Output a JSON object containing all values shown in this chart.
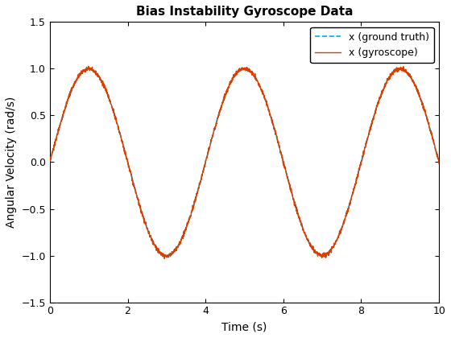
{
  "title": "Bias Instability Gyroscope Data",
  "xlabel": "Time (s)",
  "ylabel": "Angular Velocity (rad/s)",
  "xlim": [
    0,
    10
  ],
  "ylim": [
    -1.5,
    1.5
  ],
  "xticks": [
    0,
    2,
    4,
    6,
    8,
    10
  ],
  "yticks": [
    -1.5,
    -1.0,
    -0.5,
    0,
    0.5,
    1.0,
    1.5
  ],
  "ground_truth_color": "#00AAFF",
  "gyroscope_color": "#D94000",
  "ground_truth_label": "x (ground truth)",
  "gyroscope_label": "x (gyroscope)",
  "frequency": 0.25,
  "amplitude": 1.0,
  "noise_std": 0.012,
  "n_points": 2000,
  "t_start": 0,
  "t_end": 10,
  "legend_loc": "upper right",
  "title_fontsize": 11,
  "label_fontsize": 10,
  "gt_linewidth": 1.2,
  "gyro_linewidth": 1.0
}
